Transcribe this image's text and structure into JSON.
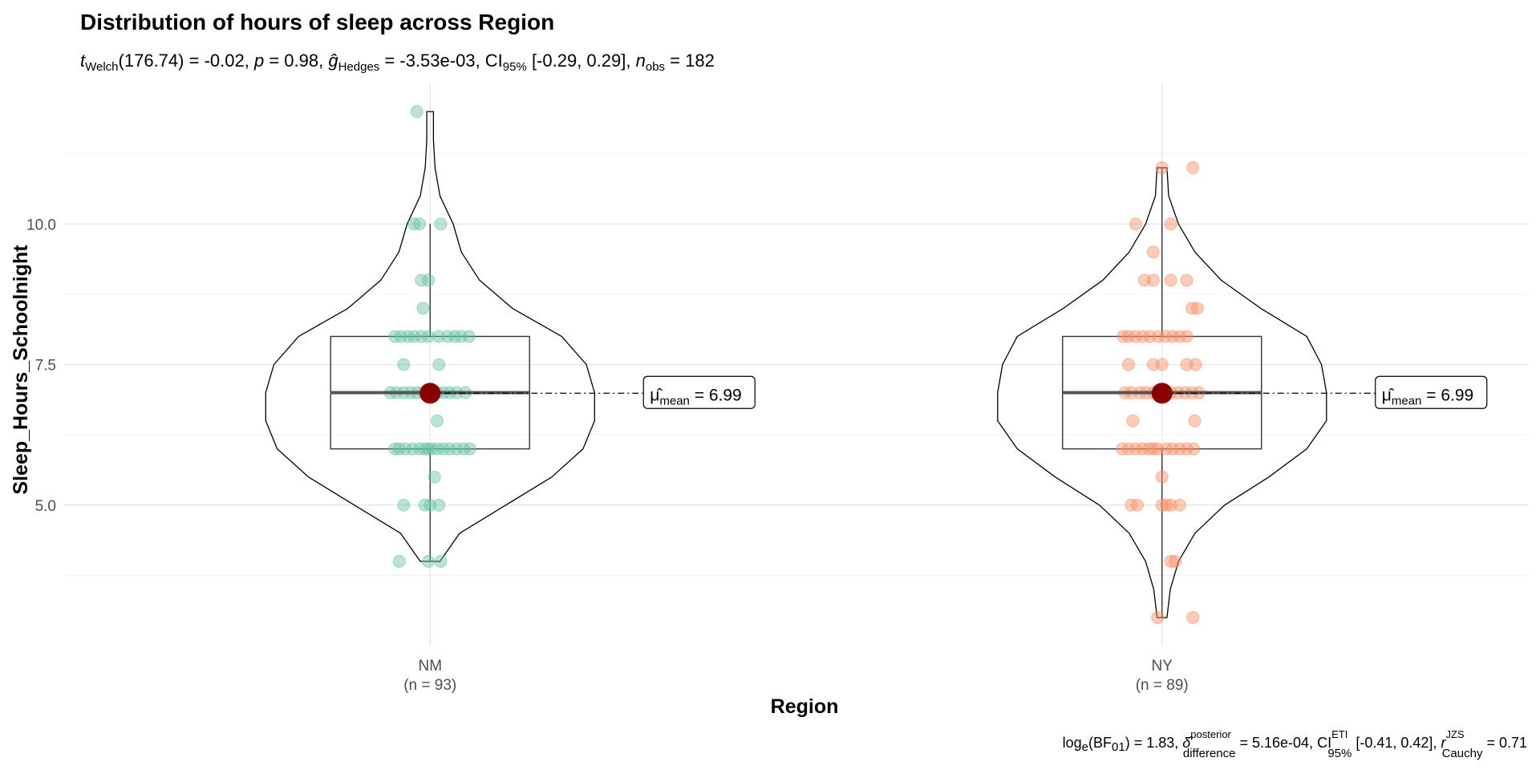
{
  "chart_data": {
    "type": "violin",
    "title": "Distribution of hours of sleep across Region",
    "subtitle": {
      "welch_df": "176.74",
      "t_value": "-0.02",
      "p_value": "0.98",
      "g_hedges": "-3.53e-03",
      "ci": "[-0.29, 0.29]",
      "n_obs": "182"
    },
    "caption": {
      "log_bf01": "1.83",
      "delta_posterior": "5.16e-04",
      "ci_eti": "[-0.41, 0.42]",
      "r_cauchy": "0.71"
    },
    "xlabel": "Region",
    "ylabel": "Sleep_Hours_Schoolnight",
    "ylim": [
      2.5,
      12.5
    ],
    "yticks": [
      5.0,
      7.5,
      10.0
    ],
    "ytick_labels": [
      "5.0",
      "7.5",
      "10.0"
    ],
    "grid": true,
    "categories": [
      "NM",
      "NY"
    ],
    "counts": [
      "(n = 93)",
      "(n = 89)"
    ],
    "colors": {
      "NM": "#66c2a5",
      "NY": "#fc8d62",
      "mean": "#8b0000"
    },
    "groups": [
      {
        "name": "NM",
        "n": 93,
        "mean": 6.99,
        "mean_label": "6.99",
        "box": {
          "q1": 6,
          "median": 7,
          "q3": 8,
          "whisker_low": 4,
          "whisker_high": 10
        },
        "violin": {
          "ymin": 4,
          "ymax": 12,
          "profile": [
            [
              4,
              0.06
            ],
            [
              4.5,
              0.18
            ],
            [
              5,
              0.46
            ],
            [
              5.5,
              0.74
            ],
            [
              6,
              0.93
            ],
            [
              6.5,
              1
            ],
            [
              7,
              1
            ],
            [
              7.5,
              0.95
            ],
            [
              8,
              0.8
            ],
            [
              8.5,
              0.5
            ],
            [
              9,
              0.3
            ],
            [
              9.5,
              0.19
            ],
            [
              10,
              0.14
            ],
            [
              10.5,
              0.06
            ],
            [
              11,
              0.03
            ],
            [
              11.5,
              0.02
            ],
            [
              12,
              0.02
            ]
          ]
        },
        "points": [
          [
            4,
            -0.35
          ],
          [
            4,
            -0.02
          ],
          [
            4,
            0.12
          ],
          [
            5,
            -0.3
          ],
          [
            5,
            -0.06
          ],
          [
            5,
            0.0
          ],
          [
            5,
            0.1
          ],
          [
            5.5,
            0.05
          ],
          [
            6,
            -0.4
          ],
          [
            6,
            -0.35
          ],
          [
            6,
            -0.28
          ],
          [
            6,
            -0.2
          ],
          [
            6,
            -0.12
          ],
          [
            6,
            -0.06
          ],
          [
            6,
            -0.02
          ],
          [
            6,
            0.02
          ],
          [
            6,
            0.08
          ],
          [
            6,
            0.15
          ],
          [
            6,
            0.22
          ],
          [
            6,
            0.3
          ],
          [
            6,
            0.38
          ],
          [
            6,
            0.45
          ],
          [
            6.5,
            0.08
          ],
          [
            7,
            -0.45
          ],
          [
            7,
            -0.38
          ],
          [
            7,
            -0.3
          ],
          [
            7,
            -0.22
          ],
          [
            7,
            -0.15
          ],
          [
            7,
            -0.08
          ],
          [
            7,
            0.08
          ],
          [
            7,
            0.15
          ],
          [
            7,
            0.22
          ],
          [
            7,
            0.3
          ],
          [
            7,
            0.4
          ],
          [
            7.5,
            -0.3
          ],
          [
            7.5,
            0.1
          ],
          [
            8,
            -0.4
          ],
          [
            8,
            -0.33
          ],
          [
            8,
            -0.25
          ],
          [
            8,
            -0.18
          ],
          [
            8,
            -0.1
          ],
          [
            8,
            -0.02
          ],
          [
            8,
            0.1
          ],
          [
            8,
            0.2
          ],
          [
            8,
            0.28
          ],
          [
            8,
            0.35
          ],
          [
            8,
            0.44
          ],
          [
            8.5,
            -0.08
          ],
          [
            9,
            -0.1
          ],
          [
            9,
            -0.02
          ],
          [
            10,
            -0.18
          ],
          [
            10,
            -0.12
          ],
          [
            10,
            0.12
          ],
          [
            12,
            -0.15
          ]
        ]
      },
      {
        "name": "NY",
        "n": 89,
        "mean": 6.99,
        "mean_label": "6.99",
        "box": {
          "q1": 6,
          "median": 7,
          "q3": 8,
          "whisker_low": 3,
          "whisker_high": 11
        },
        "violin": {
          "ymin": 3,
          "ymax": 11,
          "profile": [
            [
              3,
              0.03
            ],
            [
              3.5,
              0.05
            ],
            [
              4,
              0.1
            ],
            [
              4.5,
              0.2
            ],
            [
              5,
              0.38
            ],
            [
              5.5,
              0.65
            ],
            [
              6,
              0.88
            ],
            [
              6.5,
              1
            ],
            [
              7,
              1
            ],
            [
              7.5,
              0.97
            ],
            [
              8,
              0.88
            ],
            [
              8.5,
              0.6
            ],
            [
              9,
              0.36
            ],
            [
              9.5,
              0.2
            ],
            [
              10,
              0.1
            ],
            [
              10.5,
              0.04
            ],
            [
              11,
              0.03
            ]
          ]
        },
        "points": [
          [
            3,
            -0.05
          ],
          [
            3,
            0.35
          ],
          [
            4,
            0.1
          ],
          [
            4,
            0.15
          ],
          [
            5,
            -0.35
          ],
          [
            5,
            -0.28
          ],
          [
            5,
            0.0
          ],
          [
            5,
            0.05
          ],
          [
            5,
            0.1
          ],
          [
            5,
            0.2
          ],
          [
            5.5,
            0.0
          ],
          [
            6,
            -0.45
          ],
          [
            6,
            -0.38
          ],
          [
            6,
            -0.3
          ],
          [
            6,
            -0.22
          ],
          [
            6,
            -0.15
          ],
          [
            6,
            -0.1
          ],
          [
            6,
            -0.05
          ],
          [
            6,
            0.05
          ],
          [
            6,
            0.12
          ],
          [
            6,
            0.2
          ],
          [
            6,
            0.28
          ],
          [
            6,
            0.36
          ],
          [
            6.5,
            -0.33
          ],
          [
            6.5,
            0.37
          ],
          [
            7,
            -0.42
          ],
          [
            7,
            -0.35
          ],
          [
            7,
            -0.25
          ],
          [
            7,
            -0.18
          ],
          [
            7,
            -0.1
          ],
          [
            7,
            0.1
          ],
          [
            7,
            0.18
          ],
          [
            7,
            0.26
          ],
          [
            7,
            0.34
          ],
          [
            7,
            0.42
          ],
          [
            7.5,
            -0.38
          ],
          [
            7.5,
            -0.1
          ],
          [
            7.5,
            0.0
          ],
          [
            7.5,
            0.28
          ],
          [
            7.5,
            0.38
          ],
          [
            8,
            -0.44
          ],
          [
            8,
            -0.38
          ],
          [
            8,
            -0.3
          ],
          [
            8,
            -0.22
          ],
          [
            8,
            -0.14
          ],
          [
            8,
            -0.04
          ],
          [
            8,
            0.04
          ],
          [
            8,
            0.12
          ],
          [
            8,
            0.2
          ],
          [
            8,
            0.28
          ],
          [
            8.5,
            0.34
          ],
          [
            8.5,
            0.4
          ],
          [
            9,
            -0.2
          ],
          [
            9,
            -0.1
          ],
          [
            9,
            0.1
          ],
          [
            9,
            0.28
          ],
          [
            9.5,
            -0.1
          ],
          [
            10,
            -0.3
          ],
          [
            10,
            0.1
          ],
          [
            11,
            0.0
          ],
          [
            11,
            0.35
          ]
        ]
      }
    ]
  }
}
